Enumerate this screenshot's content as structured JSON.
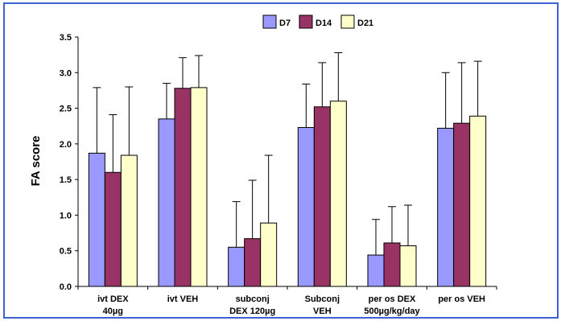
{
  "chart_data": {
    "type": "bar",
    "ylabel": "FA score",
    "ylim": [
      0,
      3.5
    ],
    "yticks": [
      "0.0",
      "0.5",
      "1.0",
      "1.5",
      "2.0",
      "2.5",
      "3.0",
      "3.5"
    ],
    "grid": false,
    "legend_position": "top-center",
    "error_bars": "upper",
    "categories": [
      [
        "ivt DEX",
        "40µg"
      ],
      [
        "ivt VEH"
      ],
      [
        "subconj",
        "DEX 120µg"
      ],
      [
        "Subconj",
        "VEH"
      ],
      [
        "per os DEX",
        "500µg/kg/day"
      ],
      [
        "per os VEH"
      ]
    ],
    "series": [
      {
        "name": "D7",
        "color": "#9999ff",
        "values": [
          1.87,
          2.35,
          0.55,
          2.23,
          0.44,
          2.22
        ],
        "errors": [
          0.92,
          0.5,
          0.64,
          0.61,
          0.5,
          0.78
        ]
      },
      {
        "name": "D14",
        "color": "#993366",
        "values": [
          1.6,
          2.78,
          0.67,
          2.52,
          0.61,
          2.29
        ],
        "errors": [
          0.81,
          0.43,
          0.82,
          0.62,
          0.51,
          0.85
        ]
      },
      {
        "name": "D21",
        "color": "#ffffcc",
        "values": [
          1.84,
          2.79,
          0.89,
          2.6,
          0.57,
          2.39
        ],
        "errors": [
          0.96,
          0.45,
          0.95,
          0.68,
          0.57,
          0.77
        ]
      }
    ]
  }
}
